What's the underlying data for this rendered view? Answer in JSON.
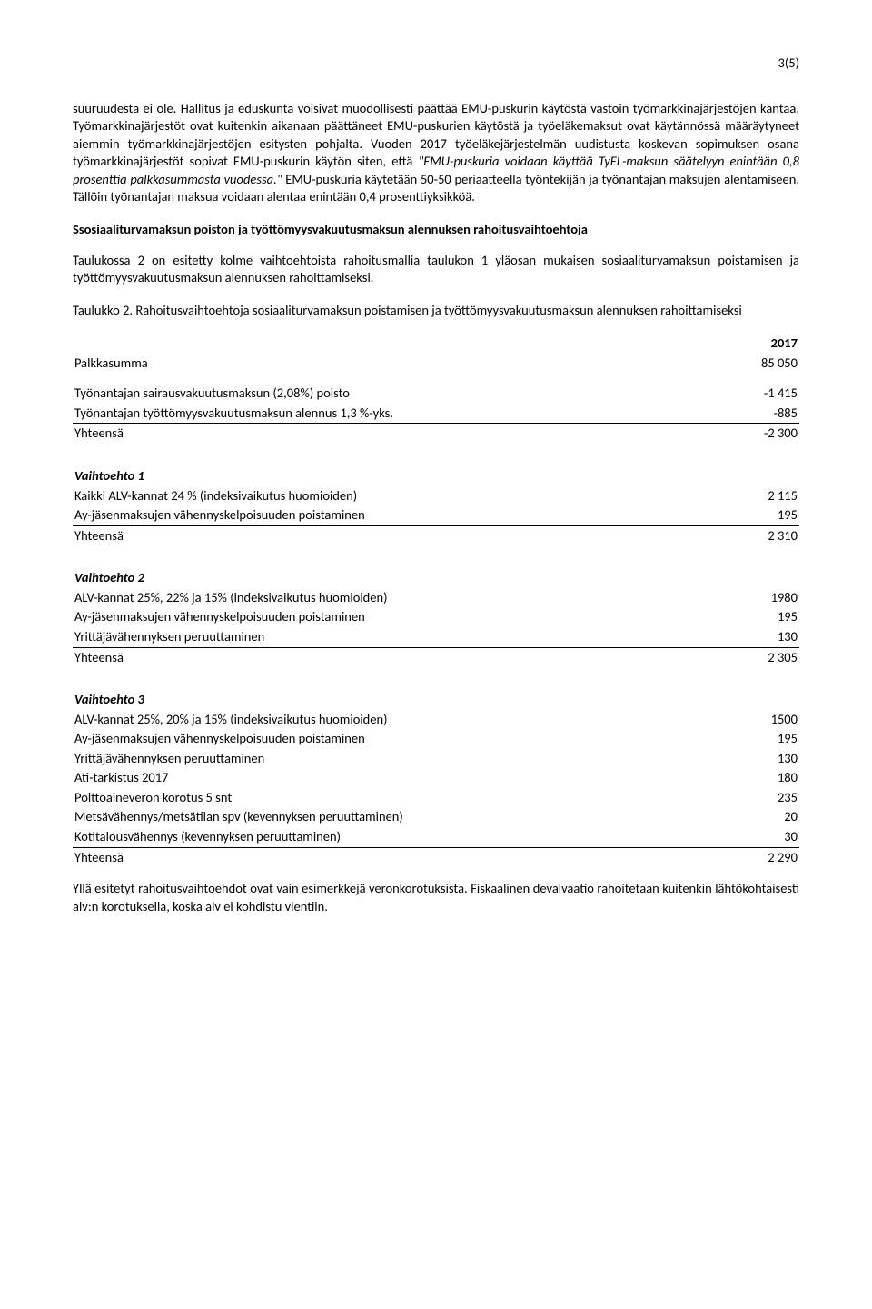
{
  "page_number": "3(5)",
  "paragraphs": {
    "p1_part1": "suuruudesta ei ole. Hallitus ja eduskunta voisivat muodollisesti päättää EMU-puskurin käytöstä vastoin työmarkkinajärjestöjen kantaa. Työmarkkinajärjestöt ovat kuitenkin aikanaan päättäneet EMU-puskurien käytöstä ja työeläkemaksut ovat käytännössä määräytyneet aiemmin työmarkkinajärjestöjen esitysten pohjalta. Vuoden 2017 työeläkejärjestelmän uudistusta koskevan sopimuksen osana työmarkkinajärjestöt sopivat EMU-puskurin käytön siten, että ",
    "p1_quote": "\"EMU-puskuria voidaan käyttää TyEL-maksun säätelyyn enintään 0,8 prosenttia palkkasummasta vuodessa.\"",
    "p1_part2": " EMU-puskuria käytetään 50-50 periaatteella työntekijän ja työnantajan maksujen alentamiseen. Tällöin työnantajan maksua voidaan alentaa enintään 0,4 prosenttiyksikköä.",
    "h_financing": "Ssosiaaliturvamaksun poiston ja työttömyysvakuutusmaksun alennuksen rahoitusvaihtoehtoja",
    "p2": "Taulukossa 2 on esitetty kolme vaihtoehtoista rahoitusmallia taulukon 1 yläosan mukaisen sosiaaliturvamaksun poistamisen ja työttömyysvakuutusmaksun alennuksen rahoittamiseksi.",
    "p3": "Taulukko 2. Rahoitusvaihtoehtoja sosiaaliturvamaksun poistamisen ja työttömyysvakuutusmaksun alennuksen rahoittamiseksi",
    "p4": "Yllä esitetyt rahoitusvaihtoehdot ovat vain esimerkkejä veronkorotuksista. Fiskaalinen devalvaatio rahoitetaan kuitenkin lähtökohtaisesti alv:n korotuksella, koska alv ei kohdistu vientiin."
  },
  "table": {
    "year_header": "2017",
    "rows_top": [
      {
        "label": "Palkkasumma",
        "value": "85 050"
      }
    ],
    "rows_removal": [
      {
        "label": "Työnantajan sairausvakuutusmaksun (2,08%) poisto",
        "value": "-1 415",
        "underline": false
      },
      {
        "label": "Työnantajan työttömyysvakuutusmaksun alennus 1,3 %-yks.",
        "value": "-885",
        "underline": true
      },
      {
        "label": "Yhteensä",
        "value": "-2 300",
        "underline": false
      }
    ],
    "option1_title": "Vaihtoehto 1",
    "option1": [
      {
        "label": "Kaikki ALV-kannat 24 % (indeksivaikutus huomioiden)",
        "value": "2 115",
        "underline": false
      },
      {
        "label": "Ay-jäsenmaksujen vähennyskelpoisuuden poistaminen",
        "value": "195",
        "underline": true
      },
      {
        "label": "Yhteensä",
        "value": "2 310",
        "underline": false
      }
    ],
    "option2_title": "Vaihtoehto 2",
    "option2": [
      {
        "label": "ALV-kannat 25%, 22% ja 15% (indeksivaikutus huomioiden)",
        "value": "1980",
        "underline": false
      },
      {
        "label": "Ay-jäsenmaksujen vähennyskelpoisuuden poistaminen",
        "value": "195",
        "underline": false
      },
      {
        "label": "Yrittäjävähennyksen peruuttaminen",
        "value": "130",
        "underline": true
      },
      {
        "label": "Yhteensä",
        "value": "2 305",
        "underline": false
      }
    ],
    "option3_title": "Vaihtoehto 3",
    "option3": [
      {
        "label": "ALV-kannat 25%, 20% ja 15% (indeksivaikutus huomioiden)",
        "value": "1500",
        "underline": false
      },
      {
        "label": "Ay-jäsenmaksujen vähennyskelpoisuuden poistaminen",
        "value": "195",
        "underline": false
      },
      {
        "label": "Yrittäjävähennyksen peruuttaminen",
        "value": "130",
        "underline": false
      },
      {
        "label": "Ati-tarkistus 2017",
        "value": "180",
        "underline": false
      },
      {
        "label": "Polttoaineveron korotus 5 snt",
        "value": "235",
        "underline": false
      },
      {
        "label": "Metsävähennys/metsätilan spv (kevennyksen peruuttaminen)",
        "value": "20",
        "underline": false
      },
      {
        "label": "Kotitalousvähennys (kevennyksen peruuttaminen)",
        "value": "30",
        "underline": true
      },
      {
        "label": "Yhteensä",
        "value": "2 290",
        "underline": false
      }
    ]
  }
}
